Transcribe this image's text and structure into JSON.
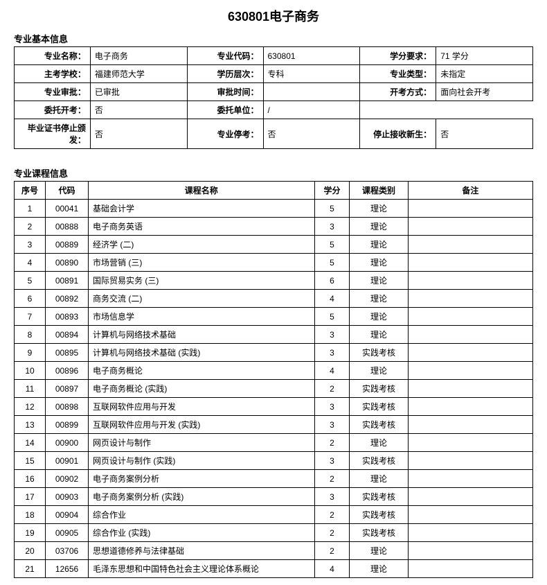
{
  "title": "630801电子商务",
  "basicInfoHeader": "专业基本信息",
  "basicInfo": {
    "row1": {
      "label1": "专业名称：",
      "value1": "电子商务",
      "label2": "专业代码：",
      "value2": "630801",
      "label3": "学分要求：",
      "value3": "71 学分"
    },
    "row2": {
      "label1": "主考学校：",
      "value1": "福建师范大学",
      "label2": "学历层次：",
      "value2": "专科",
      "label3": "专业类型：",
      "value3": "未指定"
    },
    "row3": {
      "label1": "专业审批：",
      "value1": "已审批",
      "label2": "审批时间：",
      "value2": "",
      "label3": "开考方式：",
      "value3": "面向社会开考"
    },
    "row4": {
      "label1": "委托开考：",
      "value1": "否",
      "label2": "委托单位：",
      "value2": "/",
      "label3": "",
      "value3": ""
    },
    "row5": {
      "label1": "毕业证书停止颁发：",
      "value1": "否",
      "label2": "专业停考：",
      "value2": "否",
      "label3": "停止接收新生：",
      "value3": "否"
    }
  },
  "courseInfoHeader": "专业课程信息",
  "courseHeaders": {
    "seq": "序号",
    "code": "代码",
    "name": "课程名称",
    "credit": "学分",
    "type": "课程类别",
    "remark": "备注"
  },
  "courses": [
    {
      "seq": "1",
      "code": "00041",
      "name": "基础会计学",
      "credit": "5",
      "type": "理论",
      "remark": ""
    },
    {
      "seq": "2",
      "code": "00888",
      "name": "电子商务英语",
      "credit": "3",
      "type": "理论",
      "remark": ""
    },
    {
      "seq": "3",
      "code": "00889",
      "name": "经济学 (二)",
      "credit": "5",
      "type": "理论",
      "remark": ""
    },
    {
      "seq": "4",
      "code": "00890",
      "name": "市场营销 (三)",
      "credit": "5",
      "type": "理论",
      "remark": ""
    },
    {
      "seq": "5",
      "code": "00891",
      "name": "国际贸易实务 (三)",
      "credit": "6",
      "type": "理论",
      "remark": ""
    },
    {
      "seq": "6",
      "code": "00892",
      "name": "商务交流 (二)",
      "credit": "4",
      "type": "理论",
      "remark": ""
    },
    {
      "seq": "7",
      "code": "00893",
      "name": "市场信息学",
      "credit": "5",
      "type": "理论",
      "remark": ""
    },
    {
      "seq": "8",
      "code": "00894",
      "name": "计算机与网络技术基础",
      "credit": "3",
      "type": "理论",
      "remark": ""
    },
    {
      "seq": "9",
      "code": "00895",
      "name": "计算机与网络技术基础 (实践)",
      "credit": "3",
      "type": "实践考核",
      "remark": ""
    },
    {
      "seq": "10",
      "code": "00896",
      "name": "电子商务概论",
      "credit": "4",
      "type": "理论",
      "remark": ""
    },
    {
      "seq": "11",
      "code": "00897",
      "name": "电子商务概论 (实践)",
      "credit": "2",
      "type": "实践考核",
      "remark": ""
    },
    {
      "seq": "12",
      "code": "00898",
      "name": "互联网软件应用与开发",
      "credit": "3",
      "type": "实践考核",
      "remark": ""
    },
    {
      "seq": "13",
      "code": "00899",
      "name": "互联网软件应用与开发 (实践)",
      "credit": "3",
      "type": "实践考核",
      "remark": ""
    },
    {
      "seq": "14",
      "code": "00900",
      "name": "网页设计与制作",
      "credit": "2",
      "type": "理论",
      "remark": ""
    },
    {
      "seq": "15",
      "code": "00901",
      "name": "网页设计与制作 (实践)",
      "credit": "3",
      "type": "实践考核",
      "remark": ""
    },
    {
      "seq": "16",
      "code": "00902",
      "name": "电子商务案例分析",
      "credit": "2",
      "type": "理论",
      "remark": ""
    },
    {
      "seq": "17",
      "code": "00903",
      "name": "电子商务案例分析 (实践)",
      "credit": "3",
      "type": "实践考核",
      "remark": ""
    },
    {
      "seq": "18",
      "code": "00904",
      "name": "综合作业",
      "credit": "2",
      "type": "实践考核",
      "remark": ""
    },
    {
      "seq": "19",
      "code": "00905",
      "name": "综合作业 (实践)",
      "credit": "2",
      "type": "实践考核",
      "remark": ""
    },
    {
      "seq": "20",
      "code": "03706",
      "name": "思想道德修养与法律基础",
      "credit": "2",
      "type": "理论",
      "remark": ""
    },
    {
      "seq": "21",
      "code": "12656",
      "name": "毛泽东思想和中国特色社会主义理论体系概论",
      "credit": "4",
      "type": "理论",
      "remark": ""
    }
  ]
}
